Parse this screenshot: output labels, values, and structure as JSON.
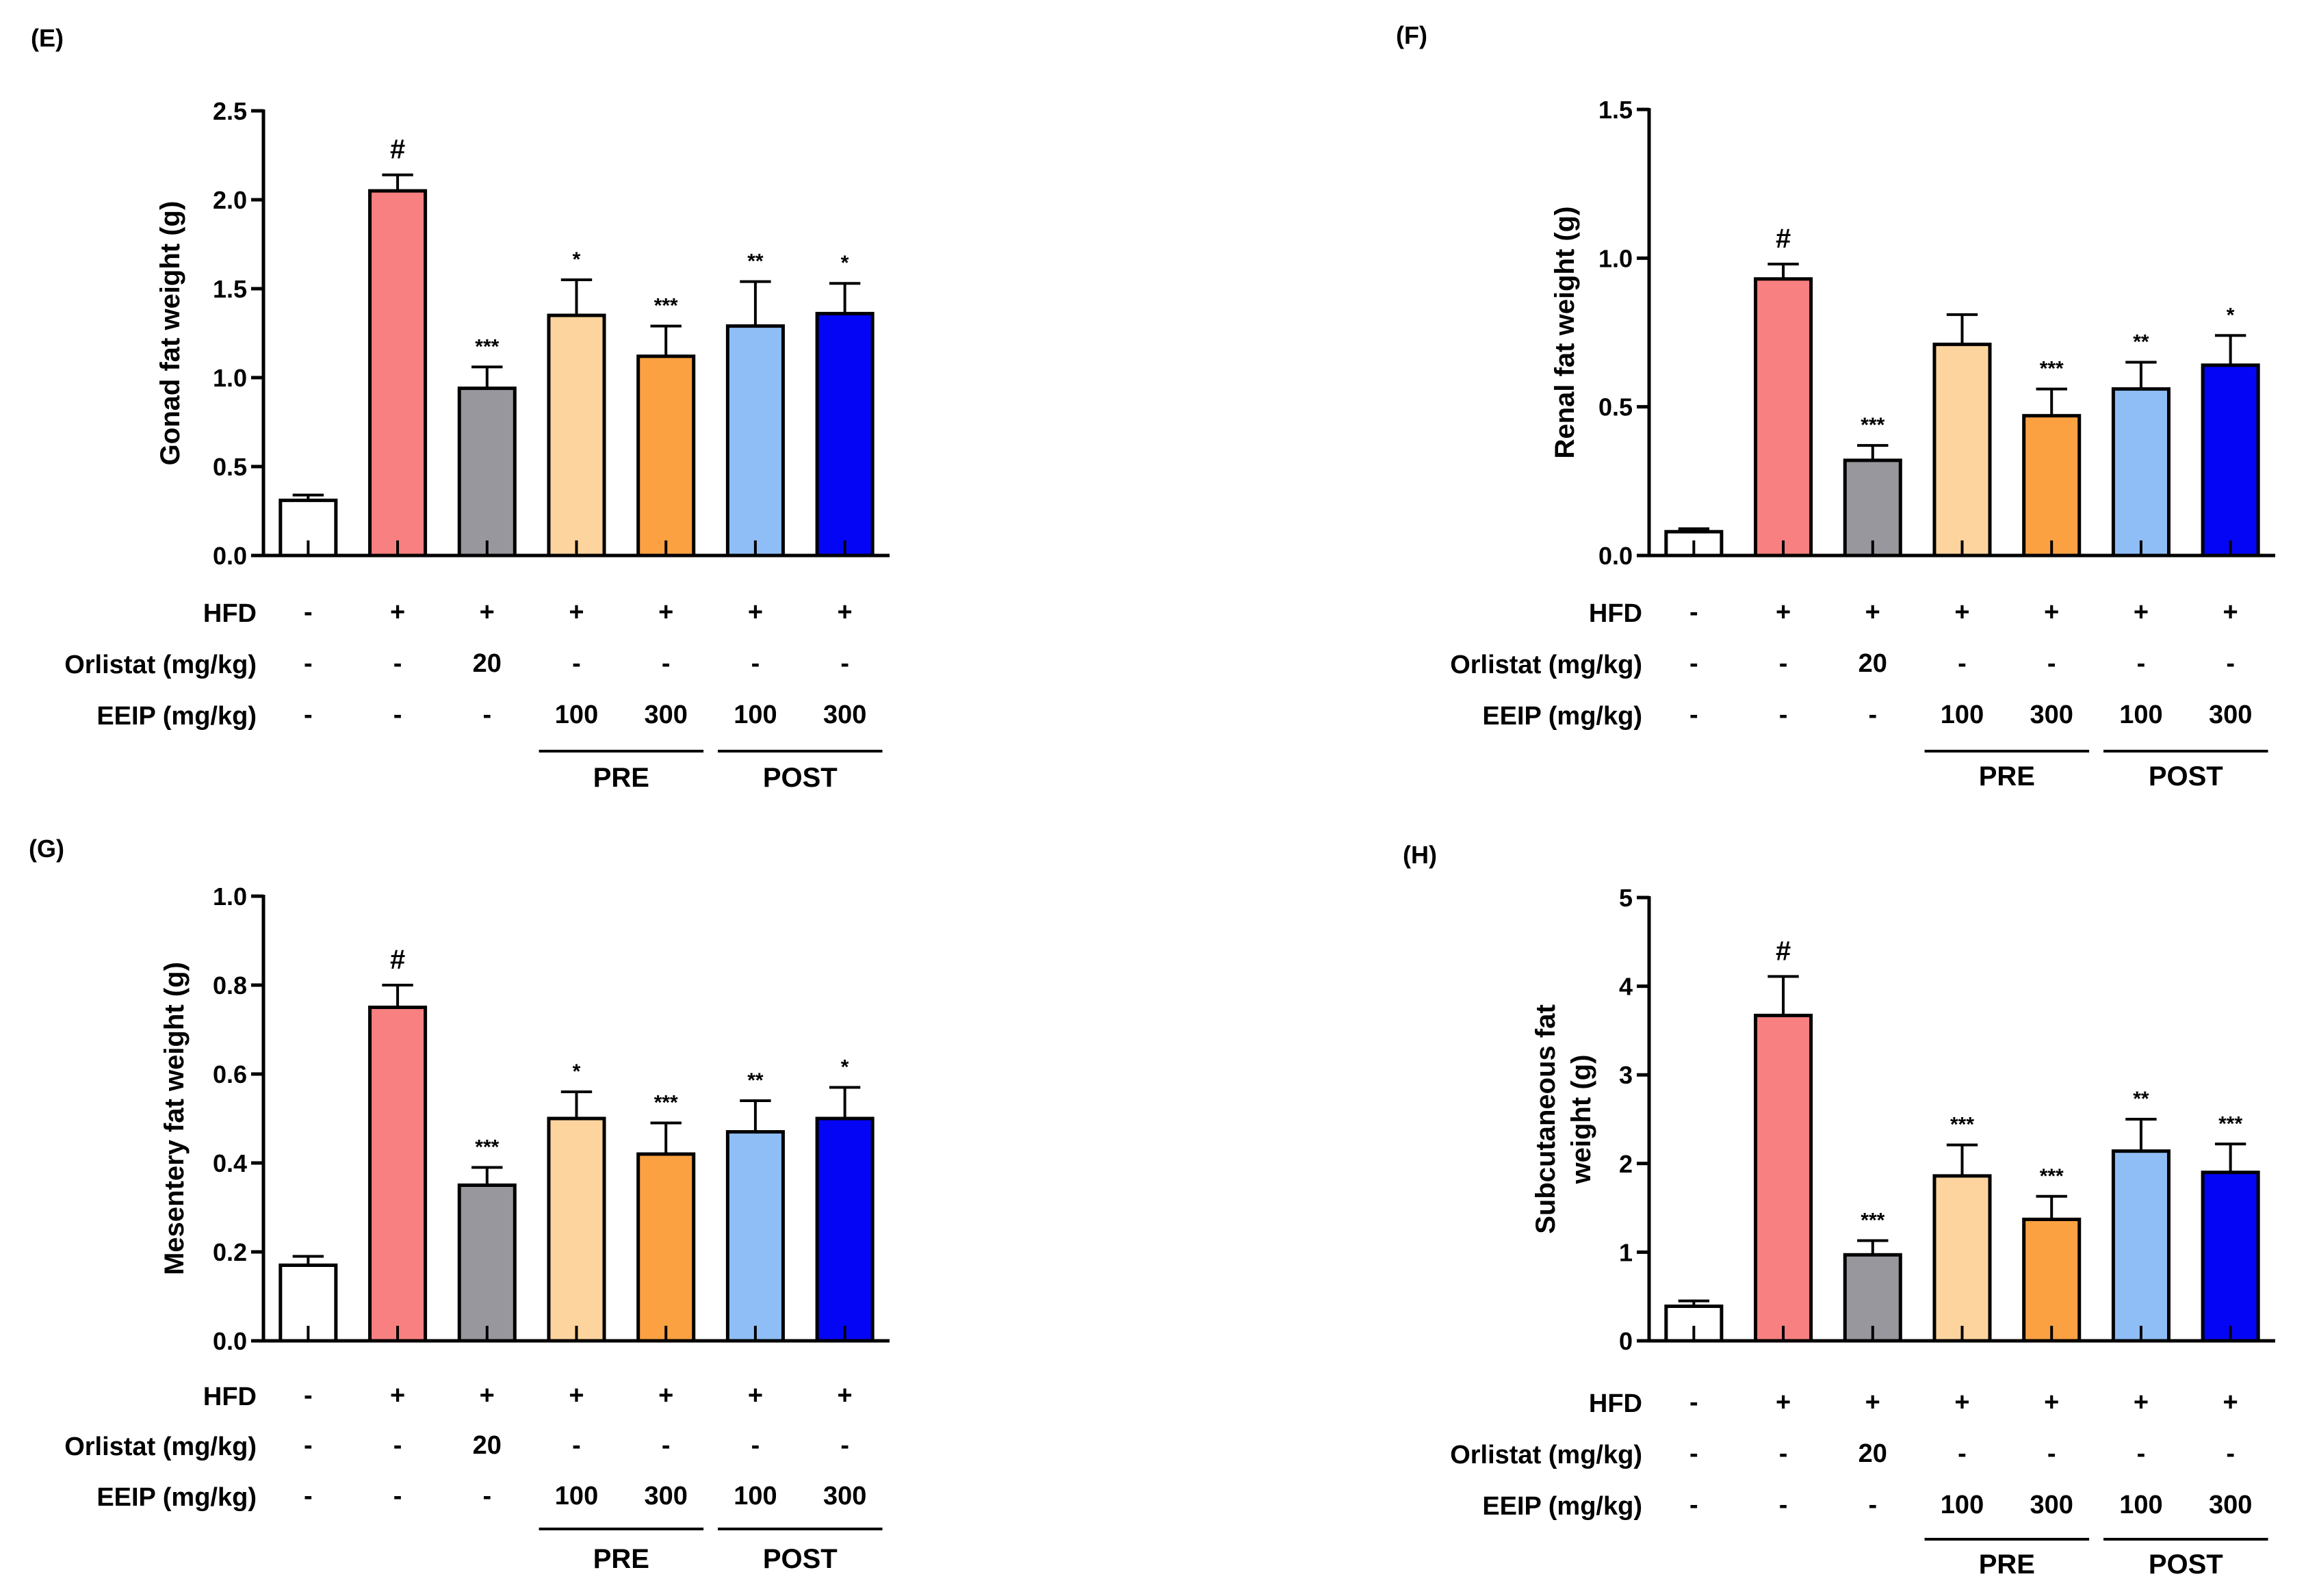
{
  "figure": {
    "row_labels": [
      "HFD",
      "Orlistat (mg/kg)",
      "EEIP (mg/kg)"
    ],
    "groups": [
      {
        "hfd": "-",
        "orlistat": "-",
        "eeip": "-"
      },
      {
        "hfd": "+",
        "orlistat": "-",
        "eeip": "-"
      },
      {
        "hfd": "+",
        "orlistat": "20",
        "eeip": "-"
      },
      {
        "hfd": "+",
        "orlistat": "-",
        "eeip": "100"
      },
      {
        "hfd": "+",
        "orlistat": "-",
        "eeip": "300"
      },
      {
        "hfd": "+",
        "orlistat": "-",
        "eeip": "100"
      },
      {
        "hfd": "+",
        "orlistat": "-",
        "eeip": "300"
      }
    ],
    "bracket_labels": [
      "PRE",
      "POST"
    ],
    "bar_colors": [
      "#ffffff",
      "#f98080",
      "#98979d",
      "#fdd49d",
      "#fba142",
      "#8fbef7",
      "#0505f5"
    ]
  },
  "chart_data": [
    {
      "panel": "(E)",
      "type": "bar",
      "ylabel": "Gonad fat weight (g)",
      "ylim": [
        0,
        2.5
      ],
      "ticks": [
        "0.0",
        "0.5",
        "1.0",
        "1.5",
        "2.0",
        "2.5"
      ],
      "values": [
        0.31,
        2.05,
        0.94,
        1.35,
        1.12,
        1.29,
        1.36
      ],
      "errors": [
        0.03,
        0.09,
        0.12,
        0.2,
        0.17,
        0.25,
        0.17
      ],
      "annotations": [
        "",
        "#",
        "***",
        "*",
        "***",
        "**",
        "*"
      ]
    },
    {
      "panel": "(F)",
      "type": "bar",
      "ylabel": "Renal fat weight (g)",
      "ylim": [
        0,
        1.5
      ],
      "ticks": [
        "0.0",
        "0.5",
        "1.0",
        "1.5"
      ],
      "values": [
        0.08,
        0.93,
        0.32,
        0.71,
        0.47,
        0.56,
        0.64
      ],
      "errors": [
        0.01,
        0.05,
        0.05,
        0.1,
        0.09,
        0.09,
        0.1
      ],
      "annotations": [
        "",
        "#",
        "***",
        "",
        "***",
        "**",
        "*"
      ]
    },
    {
      "panel": "(G)",
      "type": "bar",
      "ylabel": "Mesentery fat weight (g)",
      "ylim": [
        0,
        1.0
      ],
      "ticks": [
        "0.0",
        "0.2",
        "0.4",
        "0.6",
        "0.8",
        "1.0"
      ],
      "values": [
        0.17,
        0.75,
        0.35,
        0.5,
        0.42,
        0.47,
        0.5
      ],
      "errors": [
        0.02,
        0.05,
        0.04,
        0.06,
        0.07,
        0.07,
        0.07
      ],
      "annotations": [
        "",
        "#",
        "***",
        "*",
        "***",
        "**",
        "*"
      ]
    },
    {
      "panel": "(H)",
      "type": "bar",
      "ylabel": "Subcutaneous fat",
      "ylabel2": "weight  (g)",
      "ylim": [
        0,
        5
      ],
      "ticks": [
        "0",
        "1",
        "2",
        "3",
        "4",
        "5"
      ],
      "values": [
        0.39,
        3.67,
        0.97,
        1.86,
        1.37,
        2.14,
        1.9
      ],
      "errors": [
        0.06,
        0.44,
        0.16,
        0.35,
        0.26,
        0.36,
        0.32
      ],
      "annotations": [
        "",
        "#",
        "***",
        "***",
        "***",
        "**",
        "***"
      ]
    }
  ]
}
